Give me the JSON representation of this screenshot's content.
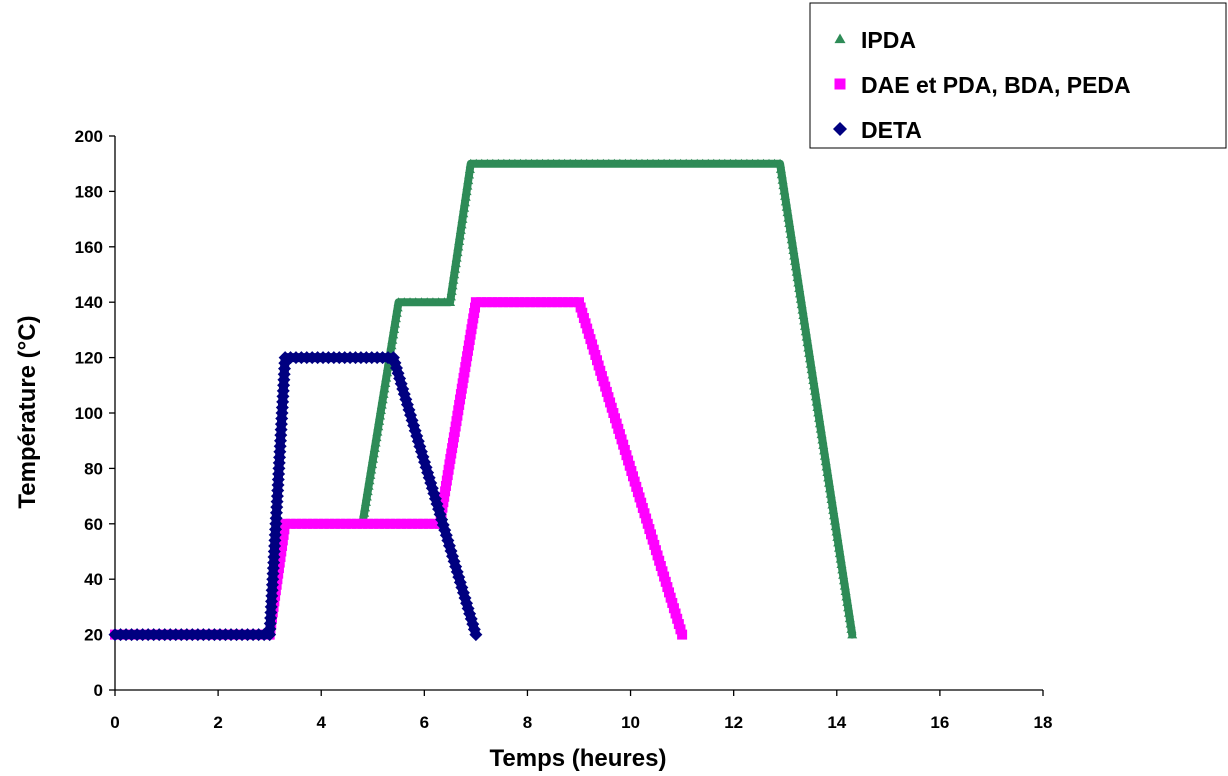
{
  "chart_data": {
    "type": "line",
    "title": "",
    "xlabel": "Temps (heures)",
    "ylabel": "Température (°C)",
    "xlim": [
      0,
      18
    ],
    "ylim": [
      0,
      200
    ],
    "xticks": [
      "0",
      "2",
      "4",
      "6",
      "8",
      "10",
      "12",
      "14",
      "16",
      "18"
    ],
    "yticks": [
      "0",
      "20",
      "40",
      "60",
      "80",
      "100",
      "120",
      "140",
      "160",
      "180",
      "200"
    ],
    "grid": false,
    "legend_position": "top-right",
    "series": [
      {
        "name": "IPDA",
        "marker": "triangle",
        "color": "#2e8b57",
        "x": [
          4.8,
          5.5,
          6.5,
          6.9,
          12.9,
          14.3
        ],
        "y": [
          60,
          140,
          140,
          190,
          190,
          20
        ]
      },
      {
        "name": "DAE et PDA, BDA, PEDA",
        "marker": "square",
        "color": "#ff00ff",
        "x": [
          0,
          3.0,
          3.3,
          6.3,
          7.0,
          9.0,
          11.0
        ],
        "y": [
          20,
          20,
          60,
          60,
          140,
          140,
          20
        ]
      },
      {
        "name": "DETA",
        "marker": "diamond",
        "color": "#000080",
        "x": [
          0,
          3.0,
          3.3,
          5.4,
          7.0
        ],
        "y": [
          20,
          20,
          120,
          120,
          20
        ]
      }
    ]
  }
}
